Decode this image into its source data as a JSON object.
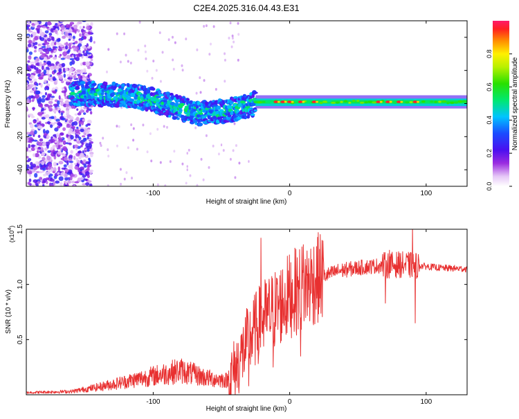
{
  "title": "C2E4.2025.316.04.43.E31",
  "chart_data": [
    {
      "type": "heatmap",
      "name": "spectrogram",
      "xlabel": "Height of straight line (km)",
      "ylabel": "Frequency (Hz)",
      "xlim": [
        -193,
        130
      ],
      "ylim": [
        -50,
        50
      ],
      "xticks": [
        -100,
        0,
        100
      ],
      "xtick_labels": [
        "-100",
        "0",
        "100"
      ],
      "yticks": [
        -40,
        -20,
        0,
        20,
        40
      ],
      "ytick_labels": [
        "-40",
        "-20",
        "0",
        "20",
        "40"
      ],
      "colorbar": {
        "label": "Normalized spectral amplitude",
        "range": [
          0,
          1
        ],
        "ticks": [
          0.0,
          0.2,
          0.4,
          0.6,
          0.8
        ],
        "tick_labels": [
          "0.0",
          "0.2",
          "0.4",
          "0.6",
          "0.8"
        ]
      },
      "ridge": [
        {
          "x": -150,
          "f": 6
        },
        {
          "x": -120,
          "f": 5
        },
        {
          "x": -100,
          "f": 2
        },
        {
          "x": -80,
          "f": -3
        },
        {
          "x": -65,
          "f": -6
        },
        {
          "x": -50,
          "f": -5
        },
        {
          "x": -35,
          "f": -2
        },
        {
          "x": -25,
          "f": 0
        },
        {
          "x": 0,
          "f": 1
        },
        {
          "x": 50,
          "f": 1
        },
        {
          "x": 100,
          "f": 1
        },
        {
          "x": 130,
          "f": 1
        }
      ]
    },
    {
      "type": "line",
      "name": "snr",
      "xlabel": "Height of straight line (km)",
      "ylabel": "SNR (10 * v/v)",
      "multiplier_label": "(x10",
      "multiplier_exp": "4",
      "multiplier_close": ")",
      "xlim": [
        -193,
        130
      ],
      "ylim": [
        0,
        15000
      ],
      "xticks": [
        -100,
        0,
        100
      ],
      "xtick_labels": [
        "-100",
        "0",
        "100"
      ],
      "yticks": [
        5000,
        10000,
        15000
      ],
      "ytick_labels": [
        "0.5",
        "1.0",
        "1.5"
      ],
      "color": "#e83030",
      "envelope": [
        {
          "x": -193,
          "y": 200
        },
        {
          "x": -160,
          "y": 300
        },
        {
          "x": -140,
          "y": 700
        },
        {
          "x": -120,
          "y": 1200
        },
        {
          "x": -100,
          "y": 1700
        },
        {
          "x": -80,
          "y": 2200
        },
        {
          "x": -60,
          "y": 1500
        },
        {
          "x": -45,
          "y": 1300
        },
        {
          "x": -38,
          "y": 2800
        },
        {
          "x": -30,
          "y": 5000
        },
        {
          "x": -20,
          "y": 6800
        },
        {
          "x": -10,
          "y": 7800
        },
        {
          "x": 0,
          "y": 9000
        },
        {
          "x": 10,
          "y": 9800
        },
        {
          "x": 20,
          "y": 10500
        },
        {
          "x": 35,
          "y": 11200
        },
        {
          "x": 50,
          "y": 11500
        },
        {
          "x": 65,
          "y": 11700
        },
        {
          "x": 80,
          "y": 11800
        },
        {
          "x": 95,
          "y": 11700
        },
        {
          "x": 110,
          "y": 11500
        },
        {
          "x": 130,
          "y": 11400
        }
      ],
      "spikes": [
        {
          "x": -30,
          "y": 800
        },
        {
          "x": -21,
          "y": 14200
        },
        {
          "x": -12,
          "y": 2500
        },
        {
          "x": 8,
          "y": 3500
        },
        {
          "x": 10,
          "y": 13600
        },
        {
          "x": 70,
          "y": 8300
        },
        {
          "x": 73,
          "y": 13100
        },
        {
          "x": 90,
          "y": 15200
        },
        {
          "x": 92,
          "y": 6500
        }
      ]
    }
  ]
}
